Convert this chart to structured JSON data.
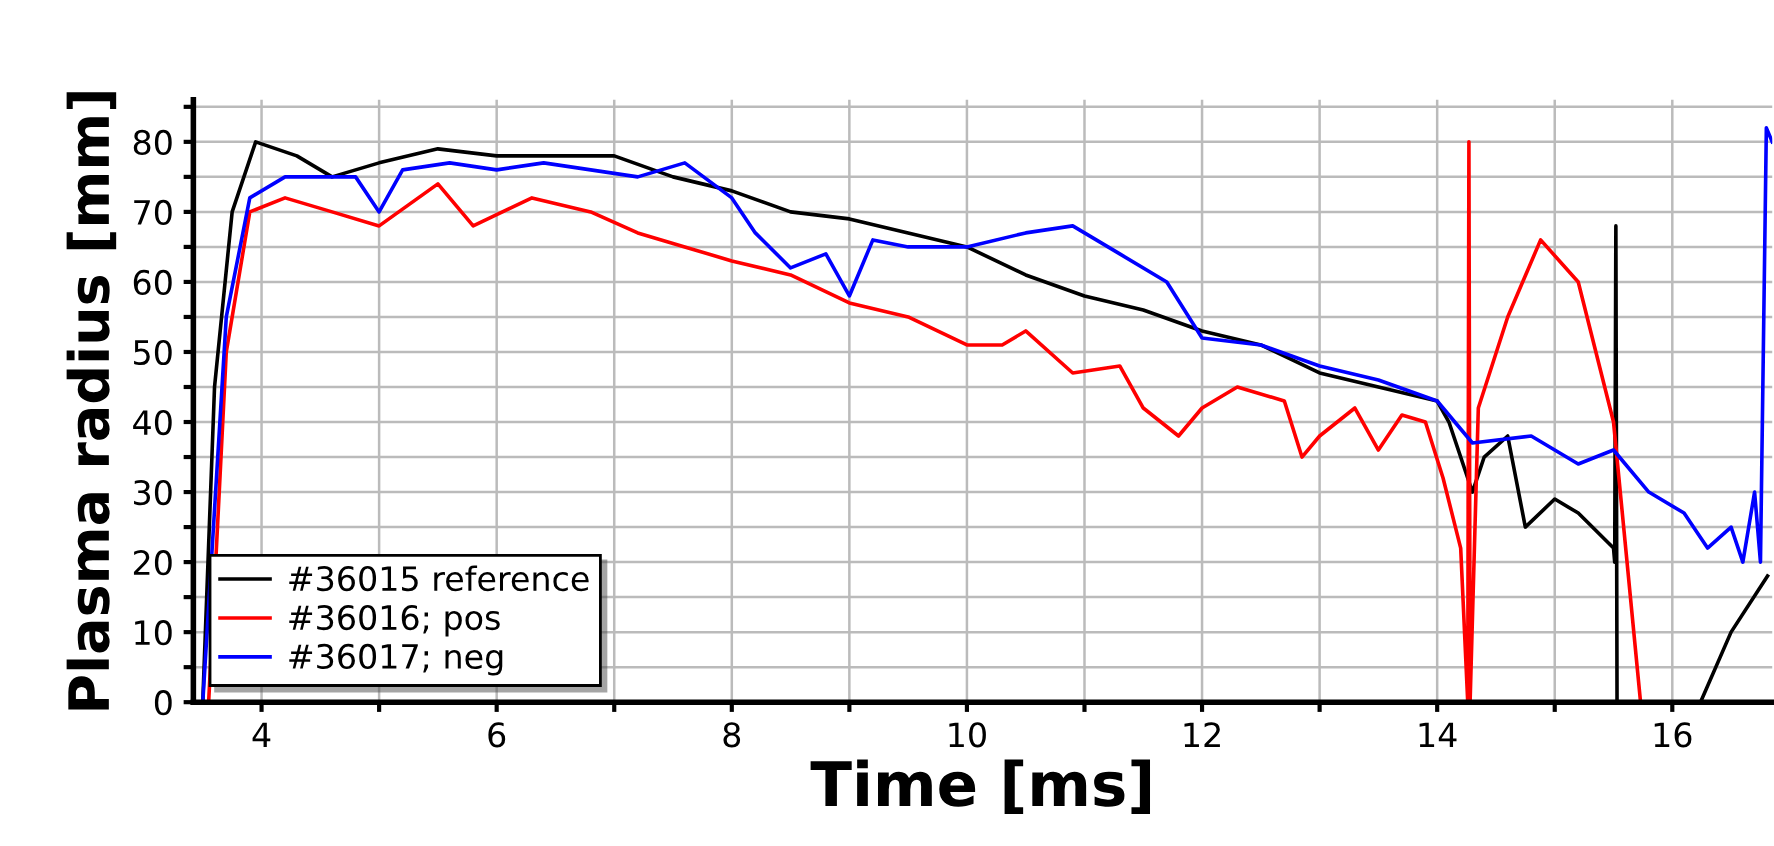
{
  "chart_data": {
    "type": "line",
    "xlabel": "Time [ms]",
    "ylabel": "Plasma radius [mm]",
    "xlim": [
      3.42,
      16.85
    ],
    "ylim": [
      0,
      86
    ],
    "xticks": [
      4,
      {
        "value": 5,
        "label": null
      },
      6,
      {
        "value": 7,
        "label": null
      },
      8,
      {
        "value": 9,
        "label": null
      },
      10,
      {
        "value": 11,
        "label": null
      },
      12,
      {
        "value": 13,
        "label": null
      },
      14,
      {
        "value": 15,
        "label": null
      },
      16
    ],
    "yticks": [
      0,
      {
        "value": 5,
        "label": null
      },
      10,
      {
        "value": 15,
        "label": null
      },
      20,
      {
        "value": 25,
        "label": null
      },
      30,
      {
        "value": 35,
        "label": null
      },
      40,
      {
        "value": 45,
        "label": null
      },
      50,
      {
        "value": 55,
        "label": null
      },
      60,
      {
        "value": 65,
        "label": null
      },
      70,
      {
        "value": 75,
        "label": null
      },
      80,
      {
        "value": 85,
        "label": null
      }
    ],
    "grid": true,
    "legend": "bottom left",
    "marker": "none",
    "line_style": "solid",
    "series": [
      {
        "name": "#36015 reference",
        "color": "#000000",
        "x": [
          3.5,
          3.6,
          3.75,
          3.95,
          4.3,
          4.6,
          5.0,
          5.5,
          6.0,
          6.5,
          7.0,
          7.5,
          8.0,
          8.5,
          9.0,
          9.5,
          10.0,
          10.5,
          11.0,
          11.5,
          12.0,
          12.5,
          13.0,
          13.5,
          14.0,
          14.1,
          14.3,
          14.4,
          14.6,
          14.75,
          15.0,
          15.2,
          15.5,
          15.51,
          15.52,
          15.53,
          15.6,
          16.24,
          16.5,
          16.81
        ],
        "values": [
          0,
          45,
          70,
          80,
          78,
          75,
          77,
          79,
          78,
          78,
          78,
          75,
          73,
          70,
          69,
          67,
          65,
          61,
          58,
          56,
          53,
          51,
          47,
          45,
          43,
          40,
          30,
          35,
          38,
          25,
          29,
          27,
          22,
          20,
          68,
          0,
          null,
          0,
          10,
          18
        ]
      },
      {
        "name": "#36016; pos",
        "color": "#ff0000",
        "x": [
          3.55,
          3.7,
          3.9,
          4.2,
          4.6,
          5.0,
          5.5,
          5.8,
          6.3,
          6.8,
          7.2,
          7.6,
          8.0,
          8.5,
          9.0,
          9.5,
          10.0,
          10.3,
          10.5,
          10.9,
          11.3,
          11.5,
          11.8,
          12.0,
          12.3,
          12.7,
          12.85,
          13.0,
          13.3,
          13.5,
          13.7,
          13.9,
          14.05,
          14.2,
          14.26,
          14.27,
          14.28,
          14.35,
          14.6,
          14.88,
          15.2,
          15.5,
          15.73
        ],
        "values": [
          0,
          50,
          70,
          72,
          70,
          68,
          74,
          68,
          72,
          70,
          67,
          65,
          63,
          61,
          57,
          55,
          51,
          51,
          53,
          47,
          48,
          42,
          38,
          42,
          45,
          43,
          35,
          38,
          42,
          36,
          41,
          40,
          32,
          22,
          0,
          80,
          0,
          42,
          55,
          66,
          60,
          40,
          0
        ]
      },
      {
        "name": "#36017; neg",
        "color": "#0000ff",
        "x": [
          3.5,
          3.7,
          3.9,
          4.2,
          4.8,
          5.0,
          5.2,
          5.6,
          6.0,
          6.4,
          6.8,
          7.2,
          7.6,
          8.0,
          8.2,
          8.5,
          8.8,
          9.0,
          9.2,
          9.5,
          10.0,
          10.5,
          10.9,
          11.3,
          11.7,
          12.0,
          12.5,
          13.0,
          13.5,
          14.0,
          14.3,
          14.8,
          15.2,
          15.5,
          15.8,
          16.1,
          16.3,
          16.5,
          16.6,
          16.7,
          16.75,
          16.8,
          16.85
        ],
        "values": [
          0,
          55,
          72,
          75,
          75,
          70,
          76,
          77,
          76,
          77,
          76,
          75,
          77,
          72,
          67,
          62,
          64,
          58,
          66,
          65,
          65,
          67,
          68,
          64,
          60,
          52,
          51,
          48,
          46,
          43,
          37,
          38,
          34,
          36,
          30,
          27,
          22,
          25,
          20,
          30,
          20,
          82,
          80
        ]
      }
    ]
  }
}
